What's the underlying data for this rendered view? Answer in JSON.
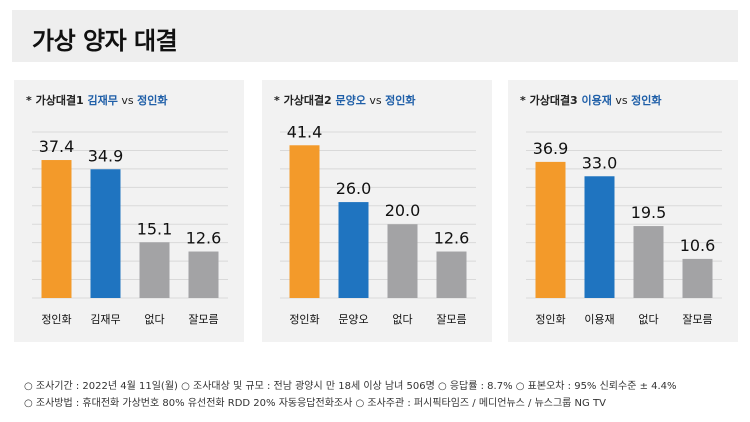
{
  "page": {
    "title": "가상 양자 대결"
  },
  "colors": {
    "orange": "#f39a2a",
    "blue": "#1f74c0",
    "gray": "#a3a3a5",
    "name_blue": "#1f5fa8"
  },
  "chart_data": [
    {
      "type": "bar",
      "title_prefix": "* 가상대결1 ",
      "title_a": "김재무",
      "title_vs": " vs ",
      "title_b": "정인화",
      "categories": [
        "정인화",
        "김재무",
        "없다",
        "잘모름"
      ],
      "values": [
        37.4,
        34.9,
        15.1,
        12.6
      ],
      "value_labels": [
        "37.4",
        "34.9",
        "15.1",
        "12.6"
      ],
      "bar_colors": [
        "#f39a2a",
        "#1f74c0",
        "#a3a3a5",
        "#a3a3a5"
      ],
      "ylim": [
        0,
        45
      ],
      "grid": true
    },
    {
      "type": "bar",
      "title_prefix": "* 가상대결2 ",
      "title_a": "문양오",
      "title_vs": " vs ",
      "title_b": "정인화",
      "categories": [
        "정인화",
        "문양오",
        "없다",
        "잘모름"
      ],
      "values": [
        41.4,
        26.0,
        20.0,
        12.6
      ],
      "value_labels": [
        "41.4",
        "26.0",
        "20.0",
        "12.6"
      ],
      "bar_colors": [
        "#f39a2a",
        "#1f74c0",
        "#a3a3a5",
        "#a3a3a5"
      ],
      "ylim": [
        0,
        45
      ],
      "grid": true
    },
    {
      "type": "bar",
      "title_prefix": "* 가상대결3 ",
      "title_a": "이용재",
      "title_vs": " vs ",
      "title_b": "정인화",
      "categories": [
        "정인화",
        "이용재",
        "없다",
        "잘모름"
      ],
      "values": [
        36.9,
        33.0,
        19.5,
        10.6
      ],
      "value_labels": [
        "36.9",
        "33.0",
        "19.5",
        "10.6"
      ],
      "bar_colors": [
        "#f39a2a",
        "#1f74c0",
        "#a3a3a5",
        "#a3a3a5"
      ],
      "ylim": [
        0,
        45
      ],
      "grid": true
    }
  ],
  "footnotes": {
    "line1": "○ 조사기간 : 2022년 4월 11일(월)  ○ 조사대상 및 규모 : 전남 광양시 만 18세 이상 남녀 506명  ○ 응답률 : 8.7%  ○ 표본오차 : 95% 신뢰수준 ± 4.4%",
    "line2": "○ 조사방법 : 휴대전화 가상번호 80%  유선전화 RDD 20%  자동응답전화조사   ○  조사주관 : 퍼시픽타임즈 / 메디언뉴스 / 뉴스그룹 NG TV"
  }
}
